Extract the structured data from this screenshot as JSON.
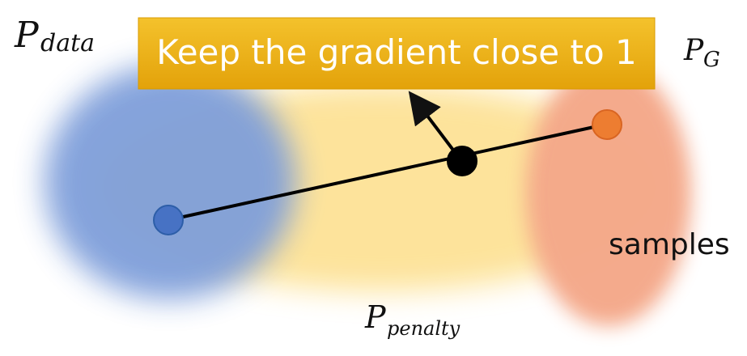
{
  "labels": {
    "p_data_main": "P",
    "p_data_sub": "data",
    "p_g_main": "P",
    "p_g_sub": "G",
    "p_penalty_main": "P",
    "p_penalty_sub": "penalty",
    "samples": "samples"
  },
  "banner": {
    "text": "Keep the gradient close to 1"
  },
  "colors": {
    "data_distribution": "#7f9fda",
    "penalty_distribution": "#fde39a",
    "generator_distribution": "#f4a98a",
    "banner_fill": "#f1b30f",
    "real_point": "#4772c4",
    "generated_point": "#ed7d31",
    "interpolated_point": "#000000"
  }
}
